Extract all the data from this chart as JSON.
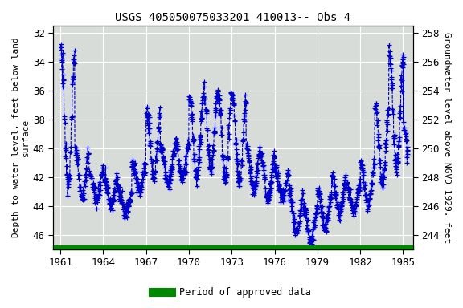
{
  "title": "USGS 405050075033201 410013-- Obs 4",
  "ylabel_left": "Depth to water level, feet below land\nsurface",
  "ylabel_right": "Groundwater level above NGVD 1929, feet",
  "ylim_left": [
    47.0,
    31.5
  ],
  "ylim_right": [
    243.0,
    258.5
  ],
  "xlim": [
    1960.5,
    1985.7
  ],
  "xticks": [
    1961,
    1964,
    1967,
    1970,
    1973,
    1976,
    1979,
    1982,
    1985
  ],
  "yticks_left": [
    32,
    34,
    36,
    38,
    40,
    42,
    44,
    46
  ],
  "yticks_right": [
    258,
    256,
    254,
    252,
    250,
    248,
    246,
    244
  ],
  "line_color": "#0000CC",
  "marker": "+",
  "linestyle": "--",
  "linewidth": 0.8,
  "markersize": 4,
  "green_bar_color": "#008800",
  "legend_label": "Period of approved data",
  "background_color": "#d8dcd8",
  "grid_color": "#ffffff",
  "title_fontsize": 10,
  "axis_fontsize": 8,
  "tick_fontsize": 9,
  "font_family": "monospace"
}
